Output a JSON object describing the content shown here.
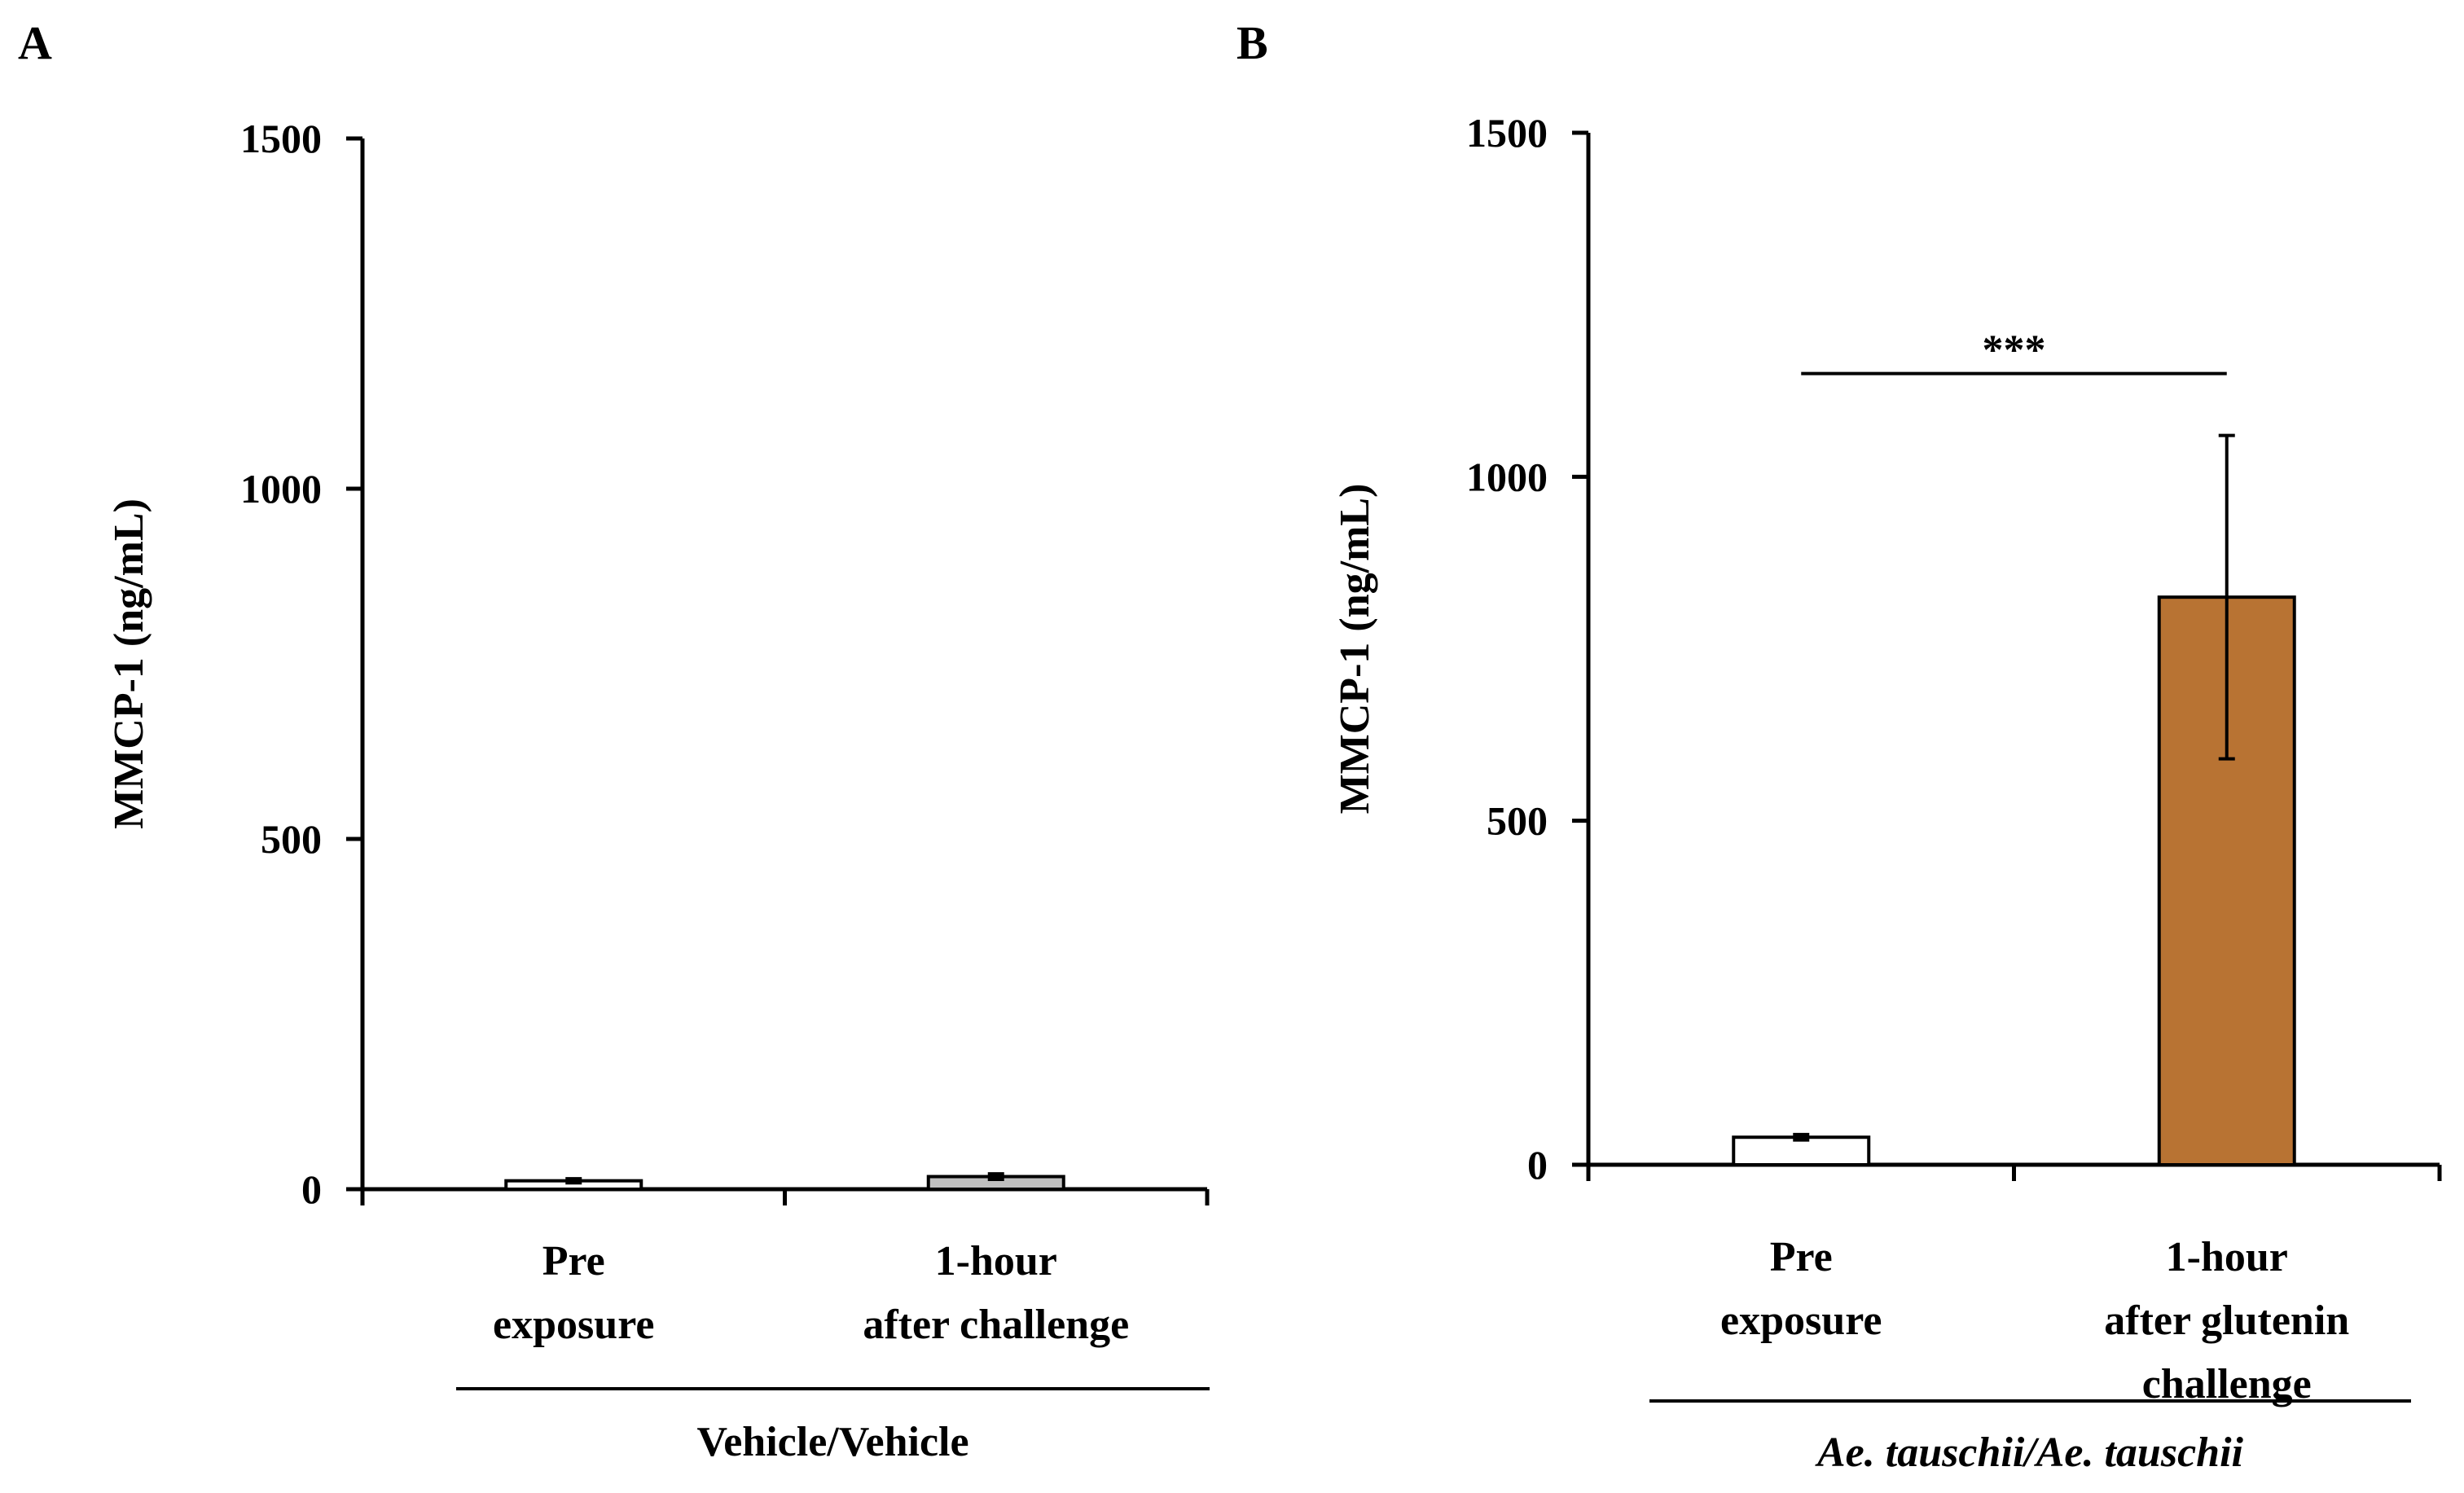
{
  "chart_data": [
    {
      "type": "bar",
      "panel_label": "A",
      "ylabel": "MMCP-1 (ng/mL)",
      "ylim": [
        0,
        1500
      ],
      "yticks": [
        0,
        500,
        1000,
        1500
      ],
      "categories": [
        [
          "Pre",
          "exposure"
        ],
        [
          "1-hour",
          "after challenge"
        ]
      ],
      "values": [
        12,
        18
      ],
      "errors": [
        3,
        4
      ],
      "bar_colors": [
        "#ffffff",
        "#bfbfbf"
      ],
      "group_label": "Vehicle/Vehicle",
      "group_label_italic": false,
      "significance": null
    },
    {
      "type": "bar",
      "panel_label": "B",
      "ylabel": "MMCP-1 (ng/mL)",
      "ylim": [
        0,
        1500
      ],
      "yticks": [
        0,
        500,
        1000,
        1500
      ],
      "categories": [
        [
          "Pre",
          "exposure"
        ],
        [
          "1-hour",
          "after glutenin",
          "challenge"
        ]
      ],
      "values": [
        40,
        825
      ],
      "errors": [
        4,
        235
      ],
      "bar_colors": [
        "#ffffff",
        "#b87333"
      ],
      "group_label": "Ae. tauschii/Ae. tauschii",
      "group_label_italic": true,
      "significance": {
        "label": "***",
        "from": 0,
        "to": 1
      }
    }
  ]
}
